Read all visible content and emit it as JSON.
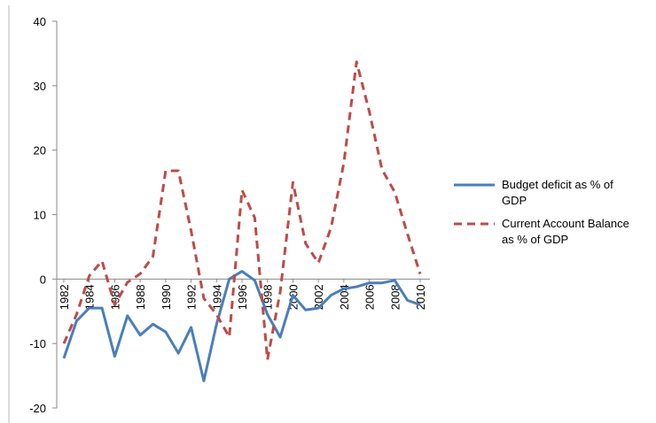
{
  "chart_data": {
    "type": "line",
    "x": [
      1982,
      1983,
      1984,
      1985,
      1986,
      1987,
      1988,
      1989,
      1990,
      1991,
      1992,
      1993,
      1994,
      1995,
      1996,
      1997,
      1998,
      1999,
      2000,
      2001,
      2002,
      2003,
      2004,
      2005,
      2006,
      2007,
      2008,
      2009,
      2010
    ],
    "xlim": [
      1982,
      2010
    ],
    "xticks": [
      1982,
      1984,
      1986,
      1988,
      1990,
      1992,
      1994,
      1996,
      1998,
      2000,
      2002,
      2004,
      2006,
      2008,
      2010
    ],
    "ylim": [
      -20,
      40
    ],
    "yticks": [
      -20,
      -10,
      0,
      10,
      20,
      30,
      40
    ],
    "grid": false,
    "legend": "right",
    "series": [
      {
        "name": "Budget deficit as % of GDP",
        "color": "#4a7ebb",
        "dash": false,
        "values": [
          -12.3,
          -6.5,
          -4.5,
          -4.5,
          -12,
          -5.7,
          -8.7,
          -7,
          -8.2,
          -11.5,
          -7.5,
          -15.8,
          -7,
          0,
          1.2,
          -0.2,
          -5.5,
          -9,
          -2.5,
          -4.8,
          -4.5,
          -2.5,
          -1.5,
          -1.2,
          -0.6,
          -0.6,
          -0.2,
          -3.3,
          -4
        ]
      },
      {
        "name": "Current Account Balance as % of GDP",
        "color": "#be4b48",
        "dash": true,
        "values": [
          -10,
          -5.5,
          0.5,
          2.8,
          -4,
          -0.5,
          0.8,
          3.5,
          16.8,
          16.8,
          7.5,
          -3,
          -5.5,
          -9,
          13.8,
          9.5,
          -12.5,
          -2,
          15,
          5.5,
          2.5,
          8,
          18,
          33.7,
          26,
          17,
          13.5,
          7,
          0.8
        ]
      }
    ]
  }
}
